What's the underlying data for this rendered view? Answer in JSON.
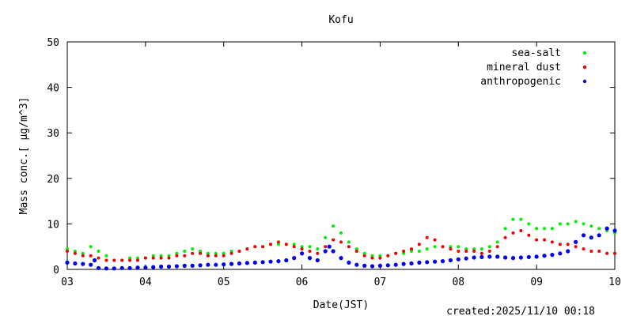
{
  "chart_data": {
    "type": "scatter",
    "title": "Kofu",
    "xlabel": "Date(JST)",
    "ylabel": "Mass conc.[ μg/m^3]",
    "xlim": [
      3,
      10
    ],
    "ylim": [
      0,
      50
    ],
    "x_ticks": [
      "03",
      "04",
      "05",
      "06",
      "07",
      "08",
      "09",
      "10"
    ],
    "y_ticks": [
      "0",
      "10",
      "20",
      "30",
      "40",
      "50"
    ],
    "grid": false,
    "legend_position": "top-right",
    "series": [
      {
        "name": "sea-salt",
        "color": "#00ee00",
        "x": [
          3.0,
          3.1,
          3.2,
          3.3,
          3.4,
          3.5,
          3.6,
          3.7,
          3.8,
          3.9,
          4.0,
          4.1,
          4.2,
          4.3,
          4.4,
          4.5,
          4.6,
          4.7,
          4.8,
          4.9,
          5.0,
          5.1,
          5.2,
          5.3,
          5.4,
          5.5,
          5.6,
          5.7,
          5.8,
          5.9,
          6.0,
          6.1,
          6.2,
          6.3,
          6.4,
          6.5,
          6.6,
          6.7,
          6.8,
          6.9,
          7.0,
          7.1,
          7.2,
          7.3,
          7.4,
          7.5,
          7.6,
          7.7,
          7.8,
          7.9,
          8.0,
          8.1,
          8.2,
          8.3,
          8.4,
          8.5,
          8.6,
          8.7,
          8.8,
          8.9,
          9.0,
          9.1,
          9.2,
          9.3,
          9.4,
          9.5,
          9.6,
          9.7,
          9.8,
          9.9,
          10.0
        ],
        "y": [
          4.5,
          4,
          3.5,
          5,
          4,
          3,
          2,
          2,
          2.5,
          2.5,
          2.5,
          3,
          3,
          3,
          3.5,
          4,
          4.5,
          4,
          3.5,
          3.5,
          3.5,
          4,
          4,
          4.5,
          5,
          5,
          5.5,
          5.5,
          5.5,
          5.5,
          5,
          5,
          4.5,
          7,
          9.5,
          8,
          6,
          4.5,
          3.5,
          3,
          3,
          3,
          3.5,
          3.5,
          4,
          4,
          4.5,
          5,
          5,
          5,
          5,
          4.5,
          4.5,
          4.5,
          5,
          6,
          9,
          11,
          11,
          10,
          9,
          9,
          9,
          10,
          10,
          10.5,
          10,
          9.5,
          9,
          8.5,
          8
        ]
      },
      {
        "name": "mineral dust",
        "color": "#ee0000",
        "x": [
          3.0,
          3.1,
          3.2,
          3.3,
          3.4,
          3.5,
          3.6,
          3.7,
          3.8,
          3.9,
          4.0,
          4.1,
          4.2,
          4.3,
          4.4,
          4.5,
          4.6,
          4.7,
          4.8,
          4.9,
          5.0,
          5.1,
          5.2,
          5.3,
          5.4,
          5.5,
          5.6,
          5.7,
          5.8,
          5.9,
          6.0,
          6.1,
          6.2,
          6.3,
          6.4,
          6.5,
          6.6,
          6.7,
          6.8,
          6.9,
          7.0,
          7.1,
          7.2,
          7.3,
          7.4,
          7.5,
          7.6,
          7.7,
          7.8,
          7.9,
          8.0,
          8.1,
          8.2,
          8.3,
          8.4,
          8.5,
          8.6,
          8.7,
          8.8,
          8.9,
          9.0,
          9.1,
          9.2,
          9.3,
          9.4,
          9.5,
          9.6,
          9.7,
          9.8,
          9.9,
          10.0
        ],
        "y": [
          4,
          3.5,
          3,
          3,
          2.5,
          2,
          2,
          2,
          2,
          2,
          2.5,
          2.5,
          2.5,
          2.5,
          3,
          3,
          3.5,
          3.5,
          3,
          3,
          3,
          3.5,
          4,
          4.5,
          5,
          5,
          5.5,
          6,
          5.5,
          5,
          4.5,
          4,
          3.5,
          5,
          6.5,
          6,
          5,
          4,
          3,
          2.5,
          2.5,
          3,
          3.5,
          4,
          4.5,
          5.5,
          7,
          6.5,
          5,
          4.5,
          4,
          4,
          4,
          3.5,
          4,
          5,
          7,
          8,
          8.5,
          7.5,
          6.5,
          6.5,
          6,
          5.5,
          5.5,
          5,
          4.5,
          4,
          4,
          3.5,
          3.5
        ]
      },
      {
        "name": "anthropogenic",
        "color": "#0000ee",
        "x": [
          3.0,
          3.1,
          3.2,
          3.3,
          3.35,
          3.4,
          3.5,
          3.6,
          3.7,
          3.8,
          3.9,
          4.0,
          4.1,
          4.2,
          4.3,
          4.4,
          4.5,
          4.6,
          4.7,
          4.8,
          4.9,
          5.0,
          5.1,
          5.2,
          5.3,
          5.4,
          5.5,
          5.6,
          5.7,
          5.8,
          5.9,
          6.0,
          6.1,
          6.2,
          6.3,
          6.35,
          6.4,
          6.5,
          6.6,
          6.7,
          6.8,
          6.9,
          7.0,
          7.1,
          7.2,
          7.3,
          7.4,
          7.5,
          7.6,
          7.7,
          7.8,
          7.9,
          8.0,
          8.1,
          8.2,
          8.3,
          8.4,
          8.5,
          8.6,
          8.7,
          8.8,
          8.9,
          9.0,
          9.1,
          9.2,
          9.3,
          9.4,
          9.5,
          9.6,
          9.7,
          9.8,
          9.9,
          10.0
        ],
        "y": [
          1.5,
          1.3,
          1.2,
          1.0,
          2.0,
          0.3,
          0.2,
          0.2,
          0.3,
          0.3,
          0.4,
          0.4,
          0.5,
          0.6,
          0.6,
          0.7,
          0.8,
          0.8,
          0.9,
          1.0,
          1.0,
          1.1,
          1.2,
          1.3,
          1.4,
          1.5,
          1.6,
          1.7,
          1.8,
          2.0,
          2.5,
          3.5,
          2.5,
          2.0,
          4.0,
          5.0,
          4.0,
          2.5,
          1.5,
          1.0,
          0.8,
          0.7,
          0.8,
          0.9,
          1.0,
          1.2,
          1.3,
          1.5,
          1.6,
          1.7,
          1.8,
          2.0,
          2.2,
          2.4,
          2.6,
          2.7,
          2.8,
          2.8,
          2.6,
          2.5,
          2.6,
          2.7,
          2.8,
          3.0,
          3.2,
          3.5,
          4.0,
          6.0,
          7.5,
          7.0,
          7.5,
          9.0,
          8.5
        ]
      }
    ]
  },
  "footer": {
    "created": "created:2025/11/10 00:18"
  }
}
